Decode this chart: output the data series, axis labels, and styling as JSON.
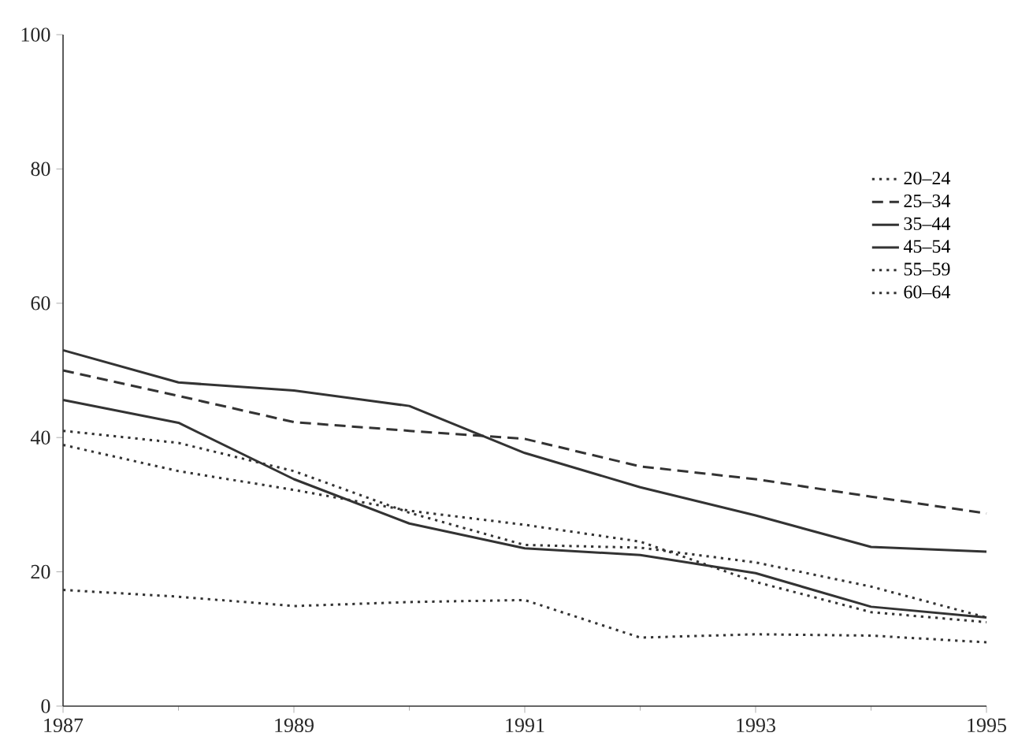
{
  "chart_data": {
    "type": "line",
    "x": [
      1987,
      1988,
      1989,
      1990,
      1991,
      1992,
      1993,
      1994,
      1995
    ],
    "series": [
      {
        "name": "20–24",
        "color": "#333333",
        "line_style": "dotted",
        "values": [
          17.3,
          16.3,
          14.9,
          15.5,
          15.8,
          10.2,
          10.7,
          10.5,
          9.5
        ]
      },
      {
        "name": "25–34",
        "color": "#333333",
        "line_style": "dashed",
        "values": [
          50,
          46.2,
          42.3,
          41,
          39.8,
          35.7,
          33.8,
          31.2,
          28.7
        ]
      },
      {
        "name": "35–44",
        "color": "#333333",
        "line_style": "solid",
        "values": [
          53,
          48.2,
          47,
          44.7,
          37.7,
          32.6,
          28.4,
          23.7,
          23
        ]
      },
      {
        "name": "45–54",
        "color": "#333333",
        "line_style": "solid",
        "values": [
          45.6,
          42.2,
          33.8,
          27.2,
          23.5,
          22.5,
          19.8,
          14.8,
          13.2
        ]
      },
      {
        "name": "55–59",
        "color": "#333333",
        "line_style": "dotted",
        "values": [
          41,
          39.2,
          35,
          28.8,
          24,
          23.6,
          21.4,
          17.8,
          13.2
        ]
      },
      {
        "name": "60–64",
        "color": "#333333",
        "line_style": "dotted",
        "values": [
          38.9,
          35,
          32.2,
          29.1,
          27,
          24.5,
          18.5,
          14,
          12.5
        ]
      }
    ],
    "xlim": [
      1987,
      1995
    ],
    "xticks": [
      1987,
      1989,
      1991,
      1993,
      1995
    ],
    "ylim": [
      0,
      100
    ],
    "yticks": [
      0,
      20,
      40,
      60,
      80,
      100
    ],
    "grid": false,
    "legend": "right",
    "marker": "none"
  }
}
